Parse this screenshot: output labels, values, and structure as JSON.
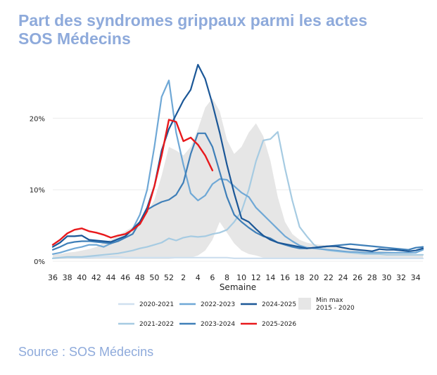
{
  "header": {
    "title_line1": "Part des syndromes grippaux parmi les actes",
    "title_line2": "SOS Médecins"
  },
  "footer": {
    "source": "Source : SOS Médecins"
  },
  "colors": {
    "title": "#8eaadb",
    "band": "#e6e6e6",
    "grid": "#ececec",
    "s2020_2021": "#cfe0ef",
    "s2021_2022": "#a6cbe2",
    "s2022_2023": "#6fa8d6",
    "s2023_2024": "#3f7fb8",
    "s2024_2025": "#1b5797",
    "s2025_2026": "#e8191c"
  },
  "chart_data": {
    "type": "line",
    "xlabel": "Semaine",
    "ylabel": "",
    "ylim": [
      0,
      28
    ],
    "yticks": [
      0,
      10,
      20
    ],
    "ytick_labels": [
      "0%",
      "10%",
      "20%"
    ],
    "x_tick_labels": [
      "36",
      "38",
      "40",
      "42",
      "44",
      "46",
      "48",
      "50",
      "52",
      "2",
      "4",
      "6",
      "8",
      "10",
      "12",
      "14",
      "16",
      "18",
      "20",
      "22",
      "24",
      "26",
      "28",
      "30",
      "32",
      "34"
    ],
    "x_weeks": [
      36,
      37,
      38,
      39,
      40,
      41,
      42,
      43,
      44,
      45,
      46,
      47,
      48,
      49,
      50,
      51,
      52,
      1,
      2,
      3,
      4,
      5,
      6,
      7,
      8,
      9,
      10,
      11,
      12,
      13,
      14,
      15,
      16,
      17,
      18,
      19,
      20,
      21,
      22,
      23,
      24,
      25,
      26,
      27,
      28,
      29,
      30,
      31,
      32,
      33,
      34,
      35
    ],
    "band": {
      "name": "Min max 2015 - 2020",
      "min": [
        0.3,
        0.3,
        0.3,
        0.3,
        0.3,
        0.3,
        0.3,
        0.3,
        0.3,
        0.3,
        0.3,
        0.3,
        0.3,
        0.3,
        0.3,
        0.3,
        0.3,
        0.4,
        0.4,
        0.5,
        0.8,
        1.5,
        3.0,
        5.5,
        4.0,
        2.5,
        1.5,
        1.0,
        0.8,
        0.5,
        0.4,
        0.4,
        0.3,
        0.3,
        0.3,
        0.3,
        0.3,
        0.3,
        0.3,
        0.3,
        0.3,
        0.3,
        0.3,
        0.3,
        0.3,
        0.3,
        0.3,
        0.3,
        0.3,
        0.3,
        0.3,
        0.3
      ],
      "max": [
        0.9,
        1.0,
        1.2,
        1.3,
        1.5,
        1.7,
        2.0,
        2.6,
        3.0,
        3.6,
        4.2,
        4.8,
        5.6,
        6.8,
        8.6,
        12.0,
        16.0,
        15.5,
        14.8,
        16.0,
        18.5,
        21.5,
        22.8,
        21.0,
        17.0,
        15.0,
        16.0,
        18.0,
        19.3,
        17.5,
        14.0,
        9.0,
        5.5,
        3.8,
        3.0,
        2.6,
        2.4,
        2.3,
        2.2,
        2.1,
        2.0,
        1.9,
        1.8,
        1.7,
        1.6,
        1.5,
        1.4,
        1.3,
        1.2,
        1.1,
        1.0,
        0.9
      ]
    },
    "series": [
      {
        "name": "2020-2021",
        "color": "#cfe0ef",
        "values": [
          0.4,
          0.5,
          0.5,
          0.5,
          0.5,
          0.5,
          0.6,
          0.6,
          0.6,
          0.6,
          0.5,
          0.5,
          0.5,
          0.5,
          0.5,
          0.5,
          0.5,
          0.5,
          0.5,
          0.5,
          0.5,
          0.5,
          0.5,
          0.5,
          0.5,
          0.4,
          0.4,
          0.4,
          0.4,
          0.4,
          0.4,
          0.4,
          0.4,
          0.4,
          0.4,
          0.4,
          0.4,
          0.4,
          0.4,
          0.4,
          0.4,
          0.4,
          0.4,
          0.4,
          0.4,
          0.4,
          0.4,
          0.4,
          0.4,
          0.4,
          0.4,
          0.4
        ]
      },
      {
        "name": "2021-2022",
        "color": "#a6cbe2",
        "values": [
          0.4,
          0.5,
          0.6,
          0.6,
          0.6,
          0.7,
          0.8,
          0.9,
          1.0,
          1.1,
          1.3,
          1.5,
          1.8,
          2.0,
          2.3,
          2.6,
          3.2,
          2.9,
          3.3,
          3.5,
          3.4,
          3.5,
          3.8,
          4.0,
          4.4,
          5.5,
          7.0,
          10.0,
          14.0,
          16.9,
          17.1,
          18.1,
          13.0,
          8.5,
          4.8,
          3.5,
          2.3,
          1.7,
          1.5,
          1.4,
          1.3,
          1.2,
          1.1,
          1.0,
          1.0,
          1.0,
          0.9,
          0.9,
          0.9,
          0.9,
          0.9,
          0.9
        ]
      },
      {
        "name": "2022-2023",
        "color": "#6fa8d6",
        "values": [
          1.0,
          1.2,
          1.5,
          1.8,
          2.0,
          2.3,
          2.3,
          2.0,
          2.5,
          3.0,
          3.5,
          4.5,
          6.5,
          10.0,
          16.0,
          23.0,
          25.3,
          18.0,
          13.5,
          9.5,
          8.5,
          9.2,
          10.8,
          11.5,
          11.4,
          10.5,
          9.6,
          9.0,
          7.5,
          6.5,
          5.5,
          4.5,
          3.5,
          2.8,
          2.2,
          1.9,
          1.8,
          1.7,
          1.6,
          1.5,
          1.4,
          1.3,
          1.3,
          1.2,
          1.2,
          1.2,
          1.2,
          1.2,
          1.2,
          1.2,
          1.2,
          1.6
        ]
      },
      {
        "name": "2023-2024",
        "color": "#3f7fb8",
        "values": [
          1.6,
          2.0,
          2.5,
          2.7,
          2.8,
          2.8,
          2.7,
          2.6,
          2.5,
          2.8,
          3.3,
          3.8,
          5.5,
          7.2,
          7.8,
          8.3,
          8.6,
          9.3,
          11.0,
          15.0,
          17.9,
          17.9,
          16.0,
          12.5,
          9.0,
          6.5,
          5.5,
          4.7,
          4.0,
          3.5,
          3.2,
          2.6,
          2.3,
          2.0,
          1.8,
          1.8,
          1.9,
          2.0,
          2.1,
          2.2,
          2.3,
          2.4,
          2.3,
          2.2,
          2.1,
          2.0,
          1.9,
          1.8,
          1.7,
          1.6,
          1.9,
          2.0
        ]
      },
      {
        "name": "2024-2025",
        "color": "#1b5797",
        "values": [
          2.0,
          2.6,
          3.5,
          3.5,
          3.6,
          3.0,
          2.9,
          2.8,
          2.7,
          3.1,
          3.5,
          4.5,
          5.5,
          7.5,
          10.5,
          15.5,
          18.5,
          20.5,
          22.5,
          24.0,
          27.5,
          25.5,
          22.0,
          18.0,
          13.5,
          9.5,
          6.0,
          5.5,
          4.5,
          3.6,
          3.0,
          2.6,
          2.4,
          2.2,
          2.0,
          1.8,
          1.9,
          2.0,
          2.1,
          2.1,
          1.9,
          1.7,
          1.6,
          1.5,
          1.4,
          1.7,
          1.6,
          1.6,
          1.5,
          1.4,
          1.5,
          1.8
        ]
      },
      {
        "name": "2025-2026",
        "color": "#e8191c",
        "values": [
          2.3,
          3.0,
          3.9,
          4.4,
          4.6,
          4.2,
          4.0,
          3.7,
          3.3,
          3.6,
          3.8,
          4.4,
          5.2,
          7.0,
          10.5,
          14.8,
          19.8,
          19.5,
          16.8,
          17.3,
          16.3,
          14.8,
          12.7,
          null,
          null,
          null,
          null,
          null,
          null,
          null,
          null,
          null,
          null,
          null,
          null,
          null,
          null,
          null,
          null,
          null,
          null,
          null,
          null,
          null,
          null,
          null,
          null,
          null,
          null,
          null,
          null,
          null
        ]
      }
    ]
  },
  "legend": {
    "row1": [
      {
        "label": "2020-2021",
        "color": "#cfe0ef"
      },
      {
        "label": "2022-2023",
        "color": "#6fa8d6"
      },
      {
        "label": "2024-2025",
        "color": "#1b5797"
      }
    ],
    "row2": [
      {
        "label": "2021-2022",
        "color": "#a6cbe2"
      },
      {
        "label": "2023-2024",
        "color": "#3f7fb8"
      },
      {
        "label": "2025-2026",
        "color": "#e8191c"
      }
    ],
    "band_label_line1": "Min max",
    "band_label_line2": "2015 - 2020"
  }
}
